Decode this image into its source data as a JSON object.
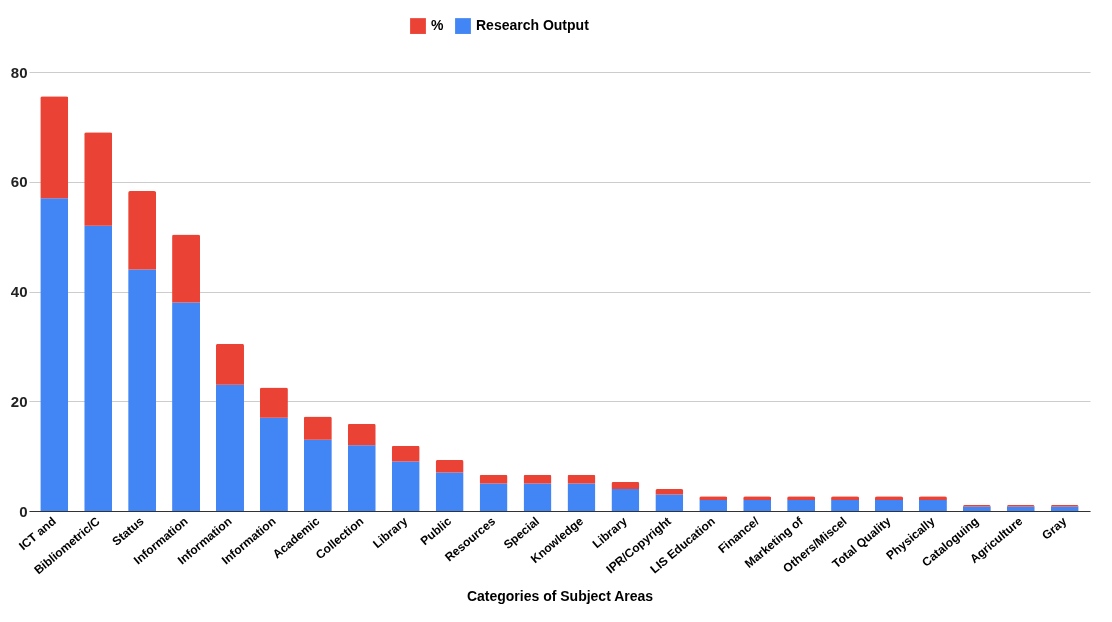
{
  "chart_data": {
    "type": "bar",
    "stacked": true,
    "xlabel": "Categories of Subject Areas",
    "categories": [
      "ICT and",
      "Bibliometric/C",
      "Status",
      "Information",
      "Information",
      "Information",
      "Academic",
      "Collection",
      "Library",
      "Public",
      "Resources",
      "Special",
      "Knowledge",
      "Library",
      "IPR/Copyright",
      "LIS Education",
      "Finance/",
      "Marketing of",
      "Others/Miscel",
      "Total Quality",
      "Physically",
      "Cataloguing",
      "Agriculture",
      "Gray"
    ],
    "series": [
      {
        "name": "Research Output",
        "color": "#4285f4",
        "values": [
          57,
          52,
          44,
          38,
          23,
          17,
          13,
          12,
          9,
          7,
          5,
          5,
          5,
          4,
          3,
          2,
          2,
          2,
          2,
          2,
          2,
          0.8,
          0.8,
          0.8
        ]
      },
      {
        "name": "%",
        "color": "#ea4335",
        "values": [
          18.6,
          17,
          14.3,
          12.4,
          7.5,
          5.5,
          4.2,
          3.9,
          2.9,
          2.3,
          1.6,
          1.6,
          1.6,
          1.3,
          1,
          0.7,
          0.7,
          0.7,
          0.7,
          0.7,
          0.7,
          0.3,
          0.3,
          0.3
        ]
      }
    ],
    "ylim": [
      0,
      80
    ],
    "yticks": [
      0,
      20,
      40,
      60,
      80
    ],
    "grid": "y",
    "legend": "top"
  }
}
